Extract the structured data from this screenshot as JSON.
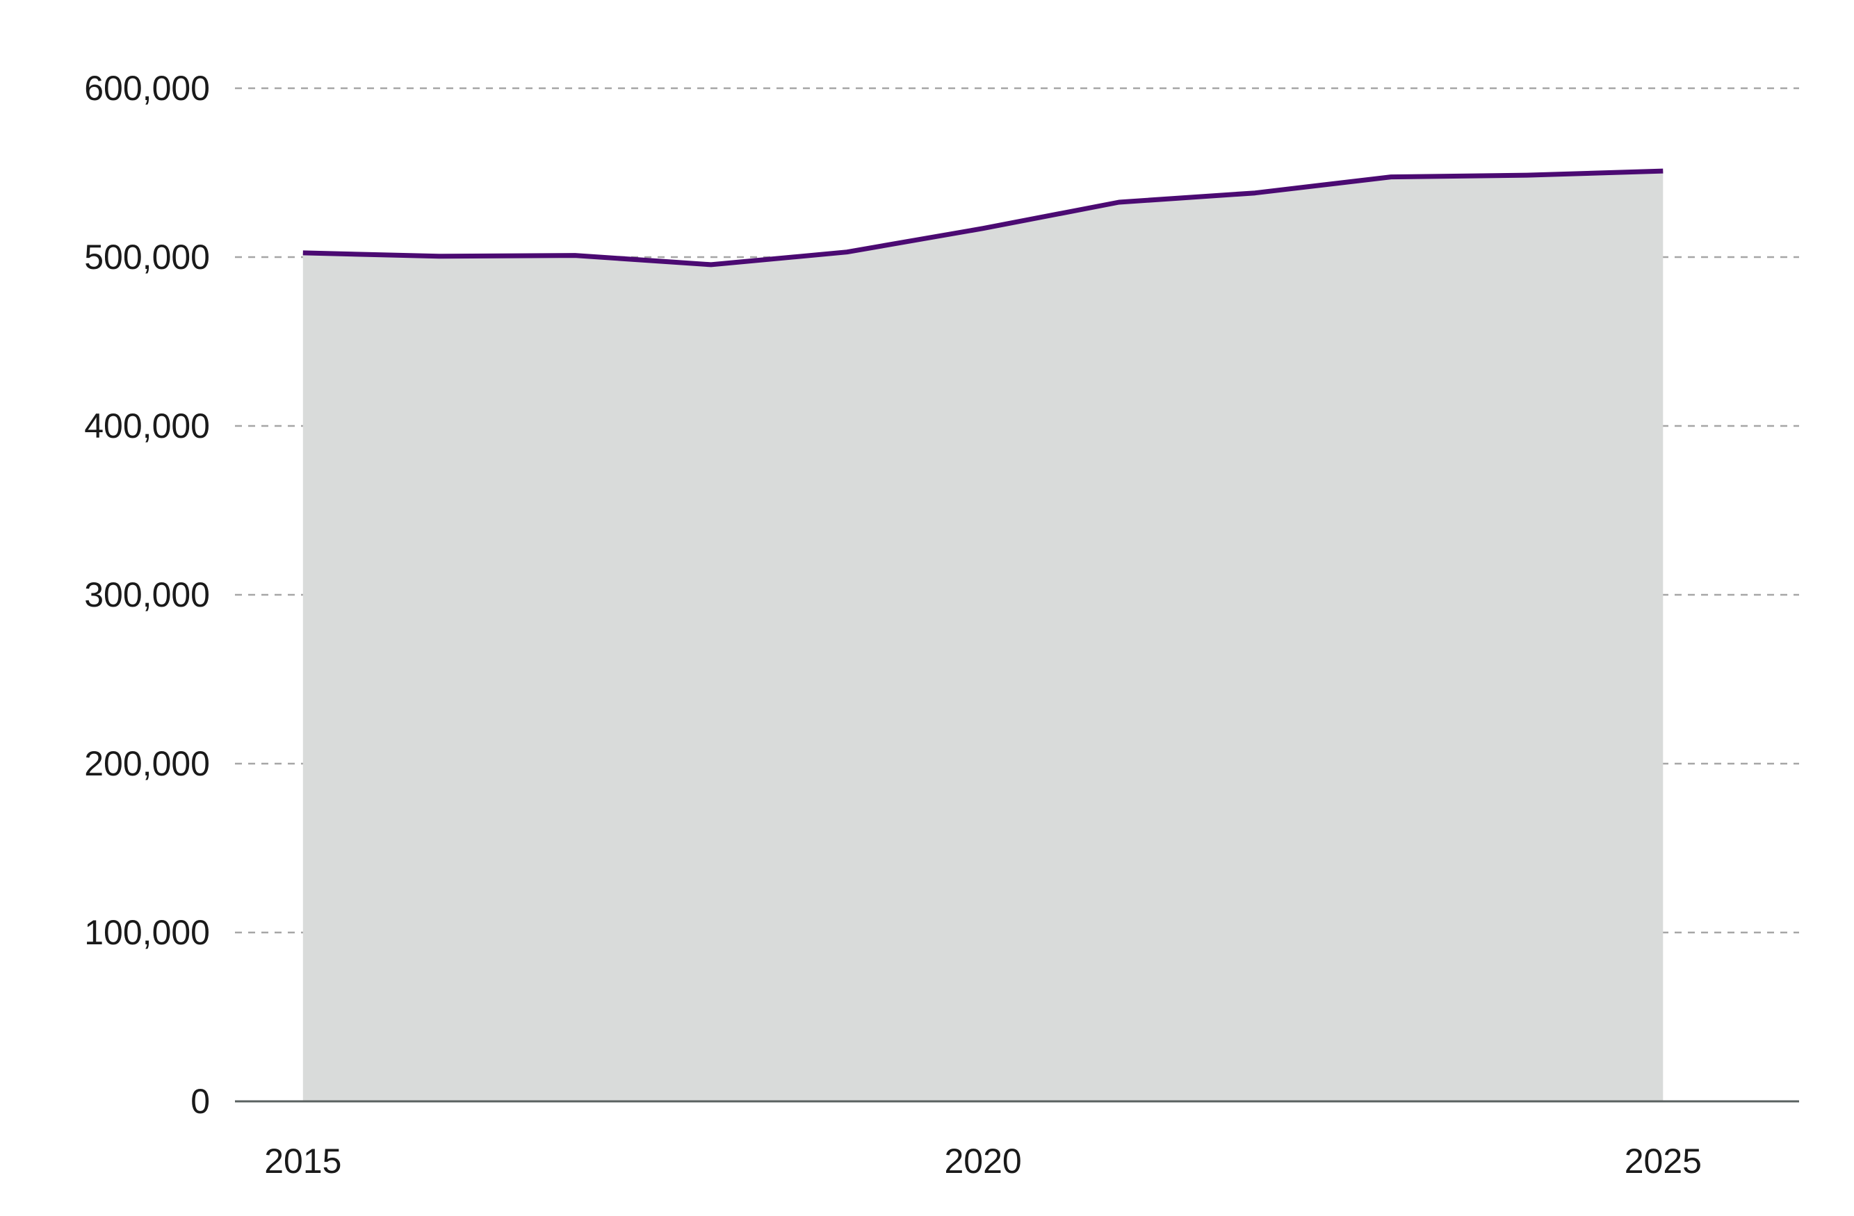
{
  "chart_data": {
    "type": "area",
    "title": "",
    "xlabel": "",
    "ylabel": "",
    "x": [
      2015,
      2016,
      2017,
      2018,
      2019,
      2020,
      2021,
      2022,
      2023,
      2024,
      2025
    ],
    "series": [
      {
        "values": [
          502500,
          500500,
          501000,
          495500,
          503000,
          517000,
          532500,
          538000,
          547500,
          548500,
          551000
        ]
      }
    ],
    "xlim": [
      2014.5,
      2026.0
    ],
    "ylim": [
      0,
      600000
    ],
    "x_ticks": [
      2015,
      2020,
      2025
    ],
    "x_tick_labels": [
      "2015",
      "2020",
      "2025"
    ],
    "y_ticks": [
      0,
      100000,
      200000,
      300000,
      400000,
      500000,
      600000
    ],
    "y_tick_labels": [
      "0",
      "100,000",
      "200,000",
      "300,000",
      "400,000",
      "500,000",
      "600,000"
    ],
    "grid": "horizontal dashed",
    "legend": "none",
    "colors": {
      "line": "#4b0a72",
      "fill": "#d9dbda",
      "grid": "#a6a6a6",
      "axis": "#5a6160"
    }
  }
}
